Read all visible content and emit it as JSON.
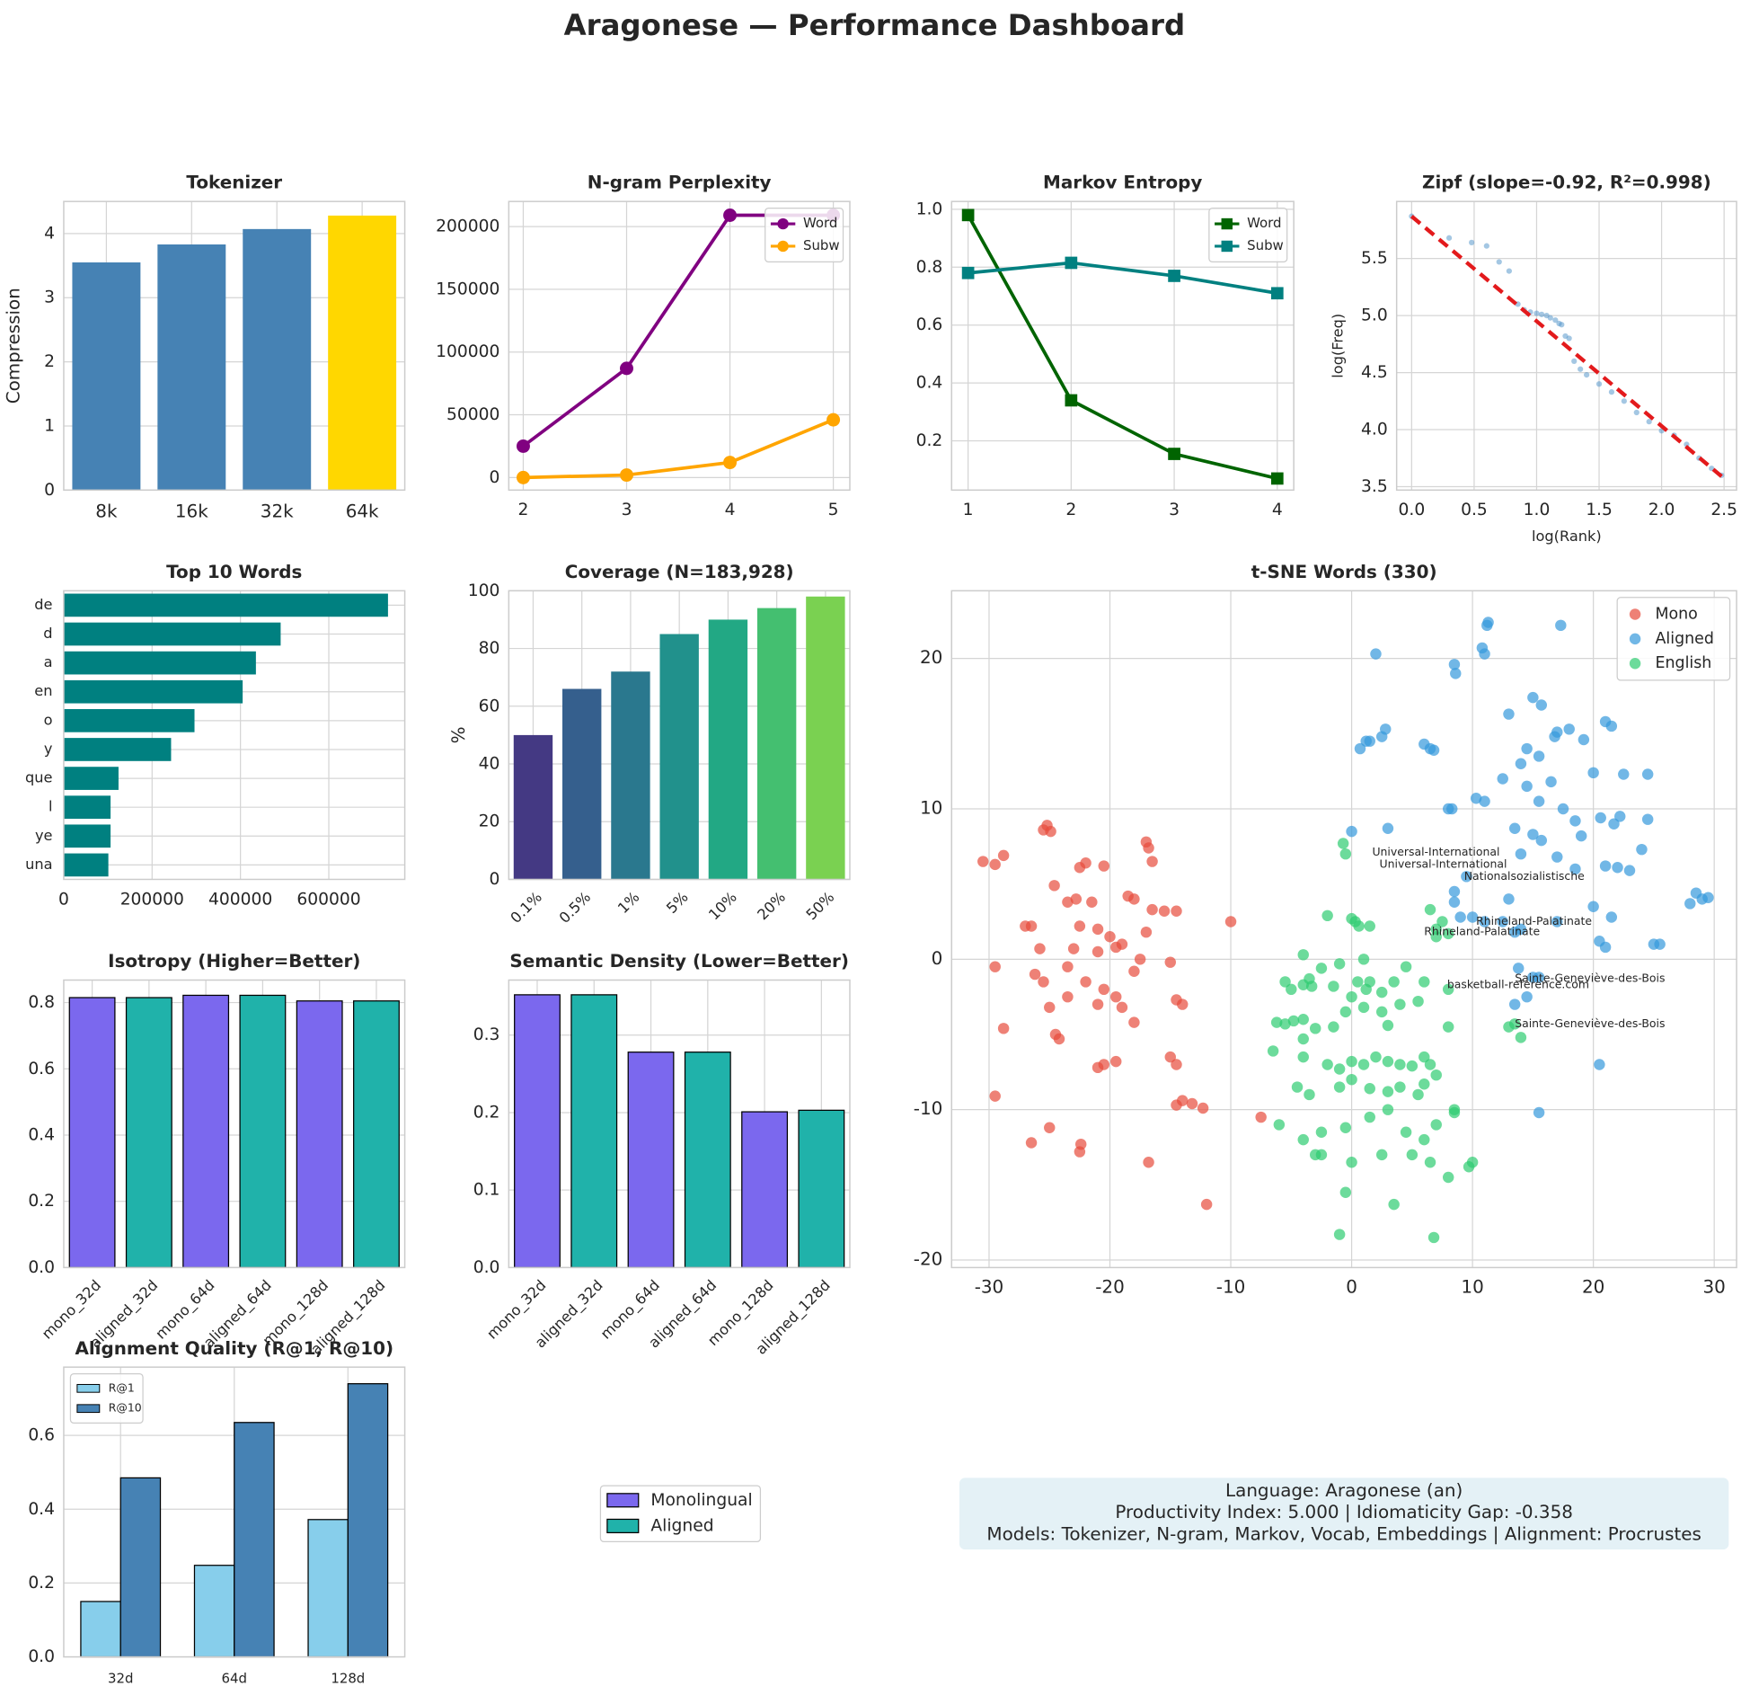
{
  "title": "Aragonese — Performance Dashboard",
  "chart_data": [
    {
      "type": "bar",
      "title": "Tokenizer",
      "ylabel": "Compression",
      "categories": [
        "8k",
        "16k",
        "32k",
        "64k"
      ],
      "values": [
        3.55,
        3.83,
        4.07,
        4.28
      ],
      "colors": [
        "#4682b4",
        "#4682b4",
        "#4682b4",
        "#ffd700"
      ],
      "ylim": [
        0,
        4.5
      ],
      "yticks": [
        0,
        1,
        2,
        3,
        4
      ],
      "grid": true
    },
    {
      "type": "line",
      "title": "N-gram Perplexity",
      "x": [
        2,
        3,
        4,
        5
      ],
      "series": [
        {
          "name": "Word",
          "color": "#800080",
          "marker": "o",
          "values": [
            25000,
            87000,
            209000,
            209000
          ]
        },
        {
          "name": "Subw",
          "color": "#ffa500",
          "marker": "o",
          "values": [
            0,
            2000,
            12000,
            46000
          ]
        }
      ],
      "xlim": [
        1.86,
        5.16
      ],
      "xticks": [
        2,
        3,
        4,
        5
      ],
      "ylim": [
        -10000,
        220000
      ],
      "yticks": [
        0,
        50000,
        100000,
        150000,
        200000
      ],
      "grid": true,
      "legend": "upper right"
    },
    {
      "type": "line",
      "title": "Markov Entropy",
      "x": [
        1,
        2,
        3,
        4
      ],
      "series": [
        {
          "name": "Word",
          "color": "#006400",
          "marker": "s",
          "values": [
            0.98,
            0.34,
            0.155,
            0.07
          ]
        },
        {
          "name": "Subw",
          "color": "#008080",
          "marker": "s",
          "values": [
            0.78,
            0.815,
            0.77,
            0.71
          ]
        }
      ],
      "xlim": [
        0.84,
        4.16
      ],
      "xticks": [
        1,
        2,
        3,
        4
      ],
      "ylim": [
        0.03,
        1.027
      ],
      "yticks": [
        0.2,
        0.4,
        0.6,
        0.8,
        {
          "value": 1,
          "label": "1.0"
        }
      ],
      "grid": true,
      "legend": "upper right"
    },
    {
      "type": "scatter",
      "title": "Zipf (slope=-0.92, R²=0.998)",
      "xlabel": "log(Rank)",
      "ylabel": "log(Freq)",
      "series": [
        {
          "color": "#4a90c8",
          "x": [
            0,
            0.3,
            0.48,
            0.6,
            0.7,
            0.78,
            0.85,
            0.9,
            0.95,
            1,
            1.04,
            1.08,
            1.11,
            1.15,
            1.18,
            1.2,
            1.23,
            1.26,
            1.3,
            1.35,
            1.4,
            1.5,
            1.6,
            1.7,
            1.8,
            1.9,
            2.0,
            2.1,
            2.2,
            2.3,
            2.4,
            2.48
          ],
          "y": [
            5.87,
            5.68,
            5.64,
            5.61,
            5.47,
            5.39,
            5.1,
            5.05,
            5.03,
            5.02,
            5.01,
            5.0,
            4.98,
            4.96,
            4.93,
            4.92,
            4.82,
            4.8,
            4.6,
            4.53,
            4.48,
            4.4,
            4.33,
            4.25,
            4.15,
            4.07,
            3.99,
            3.95,
            3.87,
            3.75,
            3.66,
            3.6
          ]
        }
      ],
      "fit": {
        "color": "#e31a1c",
        "x": [
          0,
          2.48
        ],
        "y": [
          5.87,
          3.59
        ]
      },
      "xlim": [
        -0.12,
        2.6
      ],
      "xticks": [
        {
          "value": 0,
          "label": "0.0"
        },
        0.5,
        {
          "value": 1,
          "label": "1.0"
        },
        1.5,
        {
          "value": 2,
          "label": "2.0"
        },
        2.5
      ],
      "ylim": [
        3.47,
        6.0
      ],
      "yticks": [
        3.5,
        {
          "value": 4,
          "label": "4.0"
        },
        4.5,
        {
          "value": 5,
          "label": "5.0"
        },
        5.5
      ],
      "grid": true
    },
    {
      "type": "barh",
      "title": "Top 10 Words",
      "categories": [
        "de",
        "d",
        "a",
        "en",
        "o",
        "y",
        "que",
        "l",
        "ye",
        "una"
      ],
      "values": [
        734000,
        491000,
        435000,
        405000,
        296000,
        243000,
        124000,
        106000,
        106000,
        101000
      ],
      "color": "#008080",
      "xlim": [
        0,
        772000
      ],
      "xticks": [
        0,
        200000,
        400000,
        600000
      ],
      "grid": true
    },
    {
      "type": "bar",
      "title": "Coverage (N=183,928)",
      "ylabel": "%",
      "categories": [
        "0.1%",
        "0.5%",
        "1%",
        "5%",
        "10%",
        "20%",
        "50%"
      ],
      "values": [
        50,
        66,
        72,
        85,
        90,
        94,
        98
      ],
      "colors": [
        "#443983",
        "#355f8d",
        "#2a788e",
        "#21918c",
        "#22a884",
        "#44bf70",
        "#7ad151"
      ],
      "ylim": [
        0,
        100
      ],
      "yticks": [
        0,
        20,
        40,
        60,
        80,
        100
      ],
      "grid": true,
      "xtick_rotation": 45
    },
    {
      "type": "scatter",
      "title": "t-SNE Words (330)",
      "legend": "upper right",
      "series": [
        {
          "name": "Mono",
          "color": "#e74c3c",
          "x": [
            -30.5,
            -29.5,
            -28.8,
            -29.5,
            -28.8,
            -29.5,
            -27,
            -26.5,
            -25.8,
            -26.2,
            -25.5,
            -25,
            -24.5,
            -24.2,
            -26.5,
            -25,
            -22.5,
            -22.4,
            -25.5,
            -25.2,
            -24.9,
            -22.5,
            -22,
            -24.6,
            -23.5,
            -22.8,
            -21.5,
            -22.5,
            -21,
            -20,
            -19.5,
            -21,
            -23,
            -23.5,
            -22,
            -21,
            -20.5,
            -19.5,
            -19,
            -18,
            -20.5,
            -21,
            -19.5,
            -18,
            -17.5,
            -17,
            -16.5,
            -17,
            -16.8,
            -16.5,
            -15.5,
            -14.5,
            -15,
            -14.5,
            -14,
            -15,
            -14.5,
            -14.5,
            -14,
            -13.2,
            -12.3,
            -16.8,
            -12,
            -10,
            -7.5,
            -23.5,
            -20.5,
            -18.5,
            -18,
            -19
          ],
          "y": [
            6.5,
            6.3,
            6.9,
            -0.5,
            -4.6,
            -9.1,
            2.2,
            2.2,
            0.7,
            -1,
            -1.5,
            -3.2,
            -5,
            -5.3,
            -12.2,
            -11.2,
            -12.8,
            -12.3,
            8.6,
            8.9,
            8.5,
            6.1,
            6.4,
            4.9,
            3.8,
            4,
            3.8,
            2.2,
            2,
            1.5,
            0.8,
            0.5,
            0.7,
            -0.5,
            -1.5,
            -3,
            -2,
            -2.5,
            -3.2,
            -4.2,
            -7,
            -7.2,
            -6.8,
            -0.8,
            0,
            1.8,
            3.3,
            7.8,
            7.4,
            6.5,
            3.2,
            3.2,
            -0.2,
            -2.7,
            -3,
            -6.5,
            -7,
            -9.7,
            -9.4,
            -9.6,
            -9.9,
            -13.5,
            -16.3,
            2.5,
            -10.5,
            -2.5,
            6.2,
            4.2,
            4,
            1
          ]
        },
        {
          "name": "Aligned",
          "color": "#3498db",
          "x": [
            2,
            8.5,
            8.6,
            10.8,
            11,
            11.2,
            11.3,
            17.3,
            0.7,
            1.2,
            1.5,
            2.5,
            2.8,
            6,
            6.5,
            6.8,
            8.3,
            10.3,
            11,
            12.5,
            13,
            14,
            15,
            15.7,
            14.5,
            15.5,
            17,
            18,
            16.8,
            19.2,
            20,
            21,
            21.5,
            22.5,
            24.5,
            24.5,
            24,
            22.2,
            21.7,
            20.6,
            19,
            18.5,
            17.5,
            16.5,
            14.5,
            15.5,
            13.5,
            15,
            15.7,
            14,
            17,
            18.5,
            21,
            22,
            23,
            28,
            28.5,
            29,
            29.5,
            25,
            25.5,
            17,
            20.5,
            21,
            20,
            21.5,
            13.5,
            15,
            14.5,
            13.8,
            15.5,
            13.5,
            20.5,
            15.5,
            0,
            3,
            9,
            10,
            8.5,
            8.5,
            9.5,
            11,
            12.5,
            14,
            13,
            8
          ],
          "y": [
            20.3,
            19.6,
            19,
            20.7,
            20.3,
            22.2,
            22.4,
            22.2,
            14,
            14.5,
            14.5,
            14.8,
            15.3,
            14.3,
            14,
            13.9,
            10,
            10.7,
            10.5,
            12,
            16.3,
            13,
            17.4,
            16.9,
            14,
            13.5,
            15.1,
            15.3,
            14.8,
            14.6,
            12.4,
            15.8,
            15.5,
            12.3,
            12.3,
            9.3,
            7.3,
            9.5,
            9,
            9.4,
            8.2,
            9.2,
            10,
            11.8,
            11.5,
            10.5,
            8.7,
            8.3,
            7.9,
            7,
            6.8,
            6,
            6.2,
            6.1,
            5.9,
            3.7,
            4.4,
            4,
            4.1,
            1,
            1,
            2.5,
            1.2,
            0.8,
            3.5,
            2.8,
            1.8,
            -1.2,
            -2.5,
            -0.6,
            -1.2,
            -3,
            -7,
            -10.2,
            8.5,
            8.7,
            2.8,
            2.8,
            3.8,
            4.5,
            5.5,
            2.5,
            2.5,
            2,
            4,
            10
          ]
        },
        {
          "name": "English",
          "color": "#2ecc71",
          "x": [
            -0.7,
            -0.5,
            -2,
            0,
            0.3,
            0.6,
            1.5,
            -4,
            -1,
            -2.5,
            -3.5,
            -4,
            -3.3,
            -5.5,
            -5,
            -1.5,
            0.5,
            1.5,
            2.5,
            3.5,
            5.5,
            4,
            2.5,
            3,
            1,
            0,
            -0.5,
            -1.5,
            -3,
            -4,
            -6.2,
            -4.8,
            -5.5,
            -4,
            -6.5,
            -4,
            -2,
            -1,
            0,
            1,
            2,
            3,
            4,
            5,
            6,
            6.5,
            7,
            6,
            5.5,
            4,
            3,
            1.5,
            0,
            -1,
            -3.5,
            -4.5,
            -6,
            -4,
            -2.5,
            -0.5,
            1.5,
            3,
            4.5,
            6,
            7,
            8.5,
            6.5,
            5,
            2.5,
            0,
            -2.5,
            -3,
            -0.5,
            3.5,
            6.8,
            -1,
            8,
            10,
            9.7,
            8.5,
            8,
            8,
            6,
            4.5,
            7.5,
            7,
            6.5,
            7,
            13,
            13.5,
            14,
            8,
            1,
            1.2
          ],
          "y": [
            7.7,
            7,
            2.9,
            2.7,
            2.5,
            2.2,
            2.2,
            0.3,
            -0.3,
            -0.6,
            -1.3,
            -1.7,
            -1.8,
            -1.5,
            -2,
            -1.8,
            -1.5,
            -1.5,
            -2.2,
            -1.5,
            -2.8,
            -3,
            -3.5,
            -4.4,
            -3.2,
            -2.5,
            -3.5,
            -4.5,
            -4.6,
            -4,
            -4.2,
            -4.1,
            -4.3,
            -5.3,
            -6.1,
            -6.5,
            -7,
            -7.3,
            -6.8,
            -7,
            -6.5,
            -6.8,
            -7,
            -7.1,
            -6.5,
            -7,
            -7.7,
            -8.3,
            -9,
            -8.5,
            -8.8,
            -8.6,
            -8,
            -8.5,
            -9,
            -8.5,
            -11,
            -12,
            -11.5,
            -11.2,
            -10.5,
            -10,
            -11.5,
            -12,
            -11,
            -10,
            -13.5,
            -13,
            -13,
            -13.5,
            -13,
            -13,
            -15.5,
            -16.3,
            -18.5,
            -18.3,
            -14.5,
            -13.5,
            -13.8,
            -10.2,
            -4.5,
            -2,
            -1.5,
            -0.5,
            2.5,
            1.5,
            3.3,
            2,
            -4.5,
            -4.3,
            -5.2,
            1.7,
            0,
            -2
          ]
        }
      ],
      "annotations": [
        {
          "text": "Universal-International",
          "x": 1.7,
          "y": 7.1,
          "color": "#2ecc71"
        },
        {
          "text": "Universal-International",
          "x": 2.3,
          "y": 6.3,
          "color": "#3498db"
        },
        {
          "text": "Nationalsozialistische",
          "x": 9.3,
          "y": 5.5,
          "color": "#3498db"
        },
        {
          "text": "Rhineland-Palatinate",
          "x": 10.3,
          "y": 2.5,
          "color": "#3498db"
        },
        {
          "text": "Rhineland-Palatinate",
          "x": 6.0,
          "y": 1.8,
          "color": "#2ecc71"
        },
        {
          "text": "basketball-reference.com",
          "x": 7.9,
          "y": -1.7,
          "color": "#3498db"
        },
        {
          "text": "Sainte-Geneviève-des-Bois",
          "x": 13.5,
          "y": -1.3,
          "color": "#3498db"
        },
        {
          "text": "Sainte-Geneviève-des-Bois",
          "x": 13.5,
          "y": -4.3,
          "color": "#2ecc71"
        }
      ],
      "xlim": [
        -33.1,
        31.85
      ],
      "xticks": [
        -30,
        -20,
        -10,
        0,
        10,
        20,
        30
      ],
      "ylim": [
        -20.5,
        24.5
      ],
      "yticks": [
        -20,
        -10,
        0,
        10,
        20
      ],
      "grid": true
    },
    {
      "type": "bar",
      "title": "Isotropy (Higher=Better)",
      "categories": [
        "mono_32d",
        "aligned_32d",
        "mono_64d",
        "aligned_64d",
        "mono_128d",
        "aligned_128d"
      ],
      "values": [
        0.815,
        0.815,
        0.822,
        0.822,
        0.805,
        0.805
      ],
      "colors": [
        "#7b68ee",
        "#20b2aa",
        "#7b68ee",
        "#20b2aa",
        "#7b68ee",
        "#20b2aa"
      ],
      "edgecolor": "#000000",
      "ylim": [
        0,
        0.868
      ],
      "yticks": [
        {
          "value": 0,
          "label": "0.0"
        },
        0.2,
        0.4,
        0.6,
        0.8
      ],
      "grid": true,
      "xtick_rotation": 45
    },
    {
      "type": "bar",
      "title": "Semantic Density (Lower=Better)",
      "categories": [
        "mono_32d",
        "aligned_32d",
        "mono_64d",
        "aligned_64d",
        "mono_128d",
        "aligned_128d"
      ],
      "values": [
        0.352,
        0.352,
        0.278,
        0.278,
        0.201,
        0.203
      ],
      "colors": [
        "#7b68ee",
        "#20b2aa",
        "#7b68ee",
        "#20b2aa",
        "#7b68ee",
        "#20b2aa"
      ],
      "edgecolor": "#000000",
      "ylim": [
        0,
        0.371
      ],
      "yticks": [
        {
          "value": 0,
          "label": "0.0"
        },
        0.1,
        0.2,
        0.3
      ],
      "grid": true,
      "xtick_rotation": 45
    },
    {
      "type": "bar",
      "title": "Alignment Quality (R@1, R@10)",
      "categories": [
        "32d",
        "64d",
        "128d"
      ],
      "series": [
        {
          "name": "R@1",
          "color": "#87ceeb",
          "values": [
            0.15,
            0.248,
            0.372
          ]
        },
        {
          "name": "R@10",
          "color": "#4682b4",
          "values": [
            0.485,
            0.635,
            0.74
          ]
        }
      ],
      "edgecolor": "#000000",
      "ylim": [
        0,
        0.785
      ],
      "yticks": [
        {
          "value": 0,
          "label": "0.0"
        },
        0.2,
        0.4,
        0.6
      ],
      "grid": true,
      "legend": "upper left"
    }
  ],
  "shared_legend": [
    {
      "name": "Monolingual",
      "color": "#7b68ee"
    },
    {
      "name": "Aligned",
      "color": "#20b2aa"
    }
  ],
  "info_box": [
    "Language: Aragonese (an)",
    "Productivity Index: 5.000  |  Idiomaticity Gap: -0.358",
    "Models: Tokenizer, N-gram, Markov, Vocab, Embeddings  |  Alignment: Procrustes"
  ]
}
